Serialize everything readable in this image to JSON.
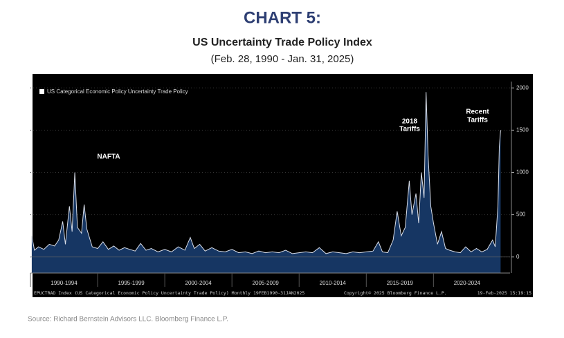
{
  "header": {
    "title": "CHART 5:",
    "subtitle": "US Uncertainty Trade Policy Index",
    "date_range": "(Feb. 28, 1990 - Jan. 31, 2025)"
  },
  "chart_data": {
    "type": "area",
    "series": [
      {
        "name": "US Categorical Economic Policy Uncertainty Trade Policy",
        "color": "#d8dde8",
        "fill": "#163663",
        "x": [
          1990.1,
          1990.3,
          1990.6,
          1991.0,
          1991.4,
          1991.8,
          1992.1,
          1992.4,
          1992.6,
          1992.9,
          1993.1,
          1993.3,
          1993.5,
          1993.8,
          1994.0,
          1994.2,
          1994.6,
          1995.0,
          1995.4,
          1995.8,
          1996.2,
          1996.6,
          1997.0,
          1997.4,
          1997.8,
          1998.2,
          1998.6,
          1999.0,
          1999.5,
          2000.0,
          2000.5,
          2001.0,
          2001.5,
          2001.9,
          2002.2,
          2002.6,
          2003.0,
          2003.5,
          2004.0,
          2004.5,
          2005.0,
          2005.5,
          2006.0,
          2006.5,
          2007.0,
          2007.5,
          2008.0,
          2008.5,
          2009.0,
          2009.5,
          2010.0,
          2010.5,
          2011.0,
          2011.5,
          2012.0,
          2012.5,
          2013.0,
          2013.5,
          2014.0,
          2014.5,
          2015.0,
          2015.5,
          2015.9,
          2016.2,
          2016.6,
          2017.0,
          2017.3,
          2017.6,
          2017.9,
          2018.2,
          2018.4,
          2018.7,
          2018.9,
          2019.1,
          2019.3,
          2019.45,
          2019.6,
          2019.8,
          2020.0,
          2020.3,
          2020.6,
          2020.9,
          2021.2,
          2021.6,
          2022.0,
          2022.4,
          2022.8,
          2023.2,
          2023.6,
          2024.0,
          2024.4,
          2024.6,
          2024.8,
          2024.9,
          2025.0
        ],
        "values": [
          250,
          80,
          120,
          90,
          150,
          130,
          200,
          420,
          150,
          600,
          300,
          1000,
          350,
          280,
          620,
          330,
          120,
          100,
          180,
          90,
          130,
          80,
          110,
          90,
          70,
          160,
          80,
          100,
          60,
          90,
          60,
          120,
          80,
          230,
          100,
          150,
          70,
          110,
          70,
          60,
          90,
          50,
          60,
          40,
          70,
          50,
          60,
          50,
          80,
          40,
          50,
          60,
          50,
          110,
          40,
          60,
          50,
          40,
          60,
          50,
          60,
          70,
          180,
          60,
          50,
          200,
          540,
          250,
          350,
          900,
          500,
          750,
          400,
          1000,
          700,
          1950,
          1200,
          600,
          400,
          150,
          300,
          100,
          80,
          60,
          50,
          120,
          60,
          100,
          60,
          90,
          200,
          120,
          600,
          1300,
          1500
        ]
      }
    ],
    "xlim": [
      1990,
      2025.7
    ],
    "ylim": [
      -190,
      2075
    ],
    "yticks": [
      0,
      500,
      1000,
      1500,
      2000
    ],
    "xticks": [
      {
        "value": 1990,
        "label": "1990-1994"
      },
      {
        "value": 1995,
        "label": "1995-1999"
      },
      {
        "value": 2000,
        "label": "2000-2004"
      },
      {
        "value": 2005,
        "label": "2005-2009"
      },
      {
        "value": 2010,
        "label": "2010-2014"
      },
      {
        "value": 2015,
        "label": "2015-2019"
      },
      {
        "value": 2020,
        "label": "2020-2024"
      }
    ],
    "annotations": [
      "NAFTA",
      "2018",
      "Tariffs",
      "Recent",
      "Tariffs"
    ],
    "footer": [
      "EPUCTRAD Index (US Categorical Economic Policy Uncertainty Trade Policy)  Monthly 19FEB1990-31JAN2025",
      "Copyright© 2025 Bloomberg Finance L.P.",
      "19-Feb-2025 15:19:15"
    ]
  },
  "source": "Source: Richard Bernstein Advisors LLC. Bloomberg Finance L.P."
}
